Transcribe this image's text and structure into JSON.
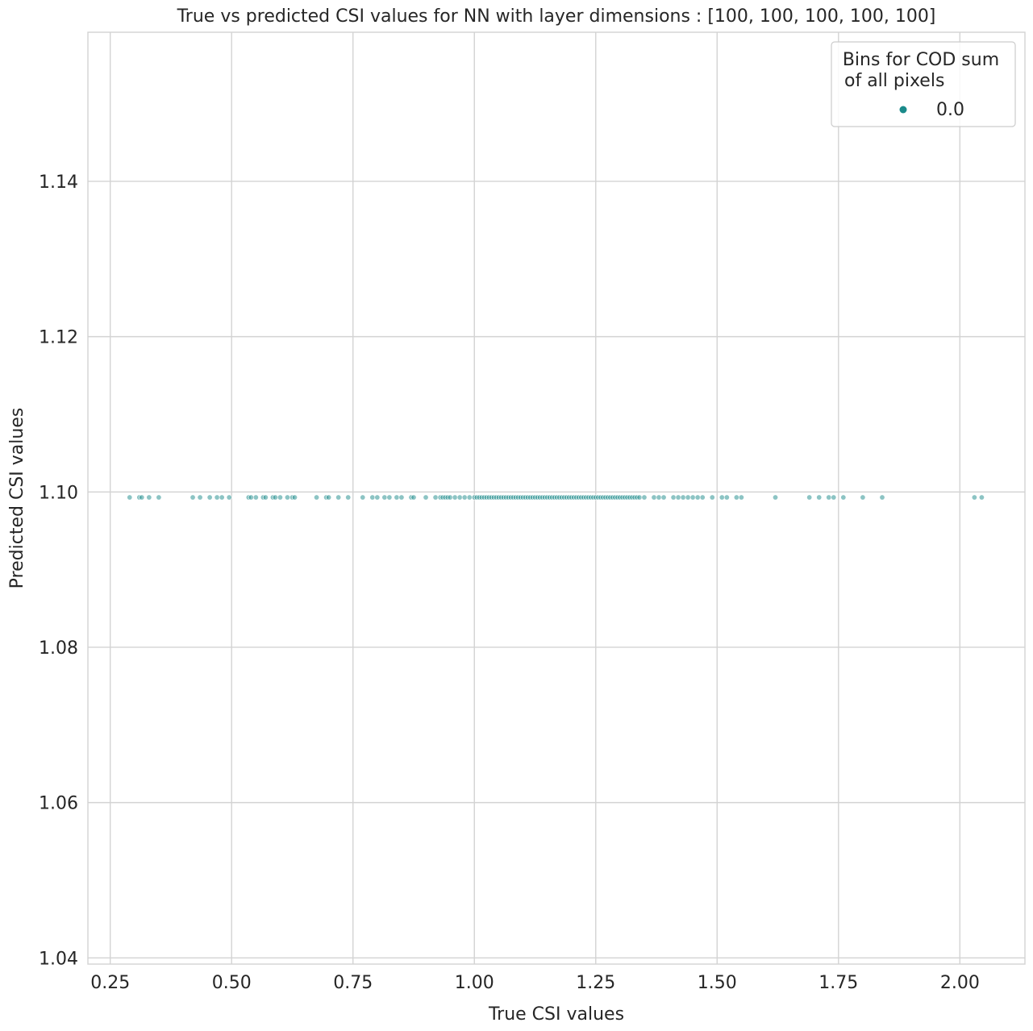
{
  "chart_data": {
    "type": "scatter",
    "title": "True vs predicted CSI values for NN with layer dimensions : [100, 100, 100, 100, 100]",
    "xlabel": "True CSI values",
    "ylabel": "Predicted CSI values",
    "xlim": [
      0.204,
      2.134
    ],
    "ylim": [
      1.0392,
      1.1592
    ],
    "xticks": [
      0.25,
      0.5,
      0.75,
      1.0,
      1.25,
      1.5,
      1.75,
      2.0
    ],
    "xtick_labels": [
      "0.25",
      "0.50",
      "0.75",
      "1.00",
      "1.25",
      "1.50",
      "1.75",
      "2.00"
    ],
    "yticks": [
      1.04,
      1.06,
      1.08,
      1.1,
      1.12,
      1.14
    ],
    "ytick_labels": [
      "1.04",
      "1.06",
      "1.08",
      "1.10",
      "1.12",
      "1.14"
    ],
    "grid": true,
    "legend": {
      "title_line1": "Bins for COD sum",
      "title_line2": " of all pixels",
      "placement": "top-right",
      "entries": [
        {
          "label": "0.0",
          "color": "#1a8a8a"
        }
      ]
    },
    "series": [
      {
        "name": "0.0",
        "color": "#1a8a8a",
        "y": 1.0993,
        "x": [
          0.29,
          0.31,
          0.315,
          0.33,
          0.35,
          0.42,
          0.435,
          0.455,
          0.47,
          0.48,
          0.495,
          0.535,
          0.54,
          0.55,
          0.565,
          0.57,
          0.585,
          0.59,
          0.6,
          0.615,
          0.625,
          0.63,
          0.675,
          0.695,
          0.7,
          0.72,
          0.74,
          0.77,
          0.79,
          0.8,
          0.815,
          0.825,
          0.84,
          0.85,
          0.87,
          0.875,
          0.9,
          0.92,
          0.93,
          0.935,
          0.94,
          0.945,
          0.95,
          0.96,
          0.97,
          0.98,
          0.99,
          1.0,
          1.005,
          1.01,
          1.015,
          1.02,
          1.025,
          1.03,
          1.035,
          1.04,
          1.045,
          1.05,
          1.055,
          1.06,
          1.065,
          1.07,
          1.075,
          1.08,
          1.085,
          1.09,
          1.095,
          1.1,
          1.105,
          1.11,
          1.115,
          1.12,
          1.125,
          1.13,
          1.135,
          1.14,
          1.145,
          1.15,
          1.155,
          1.16,
          1.165,
          1.17,
          1.175,
          1.18,
          1.185,
          1.19,
          1.195,
          1.2,
          1.205,
          1.21,
          1.215,
          1.22,
          1.225,
          1.23,
          1.235,
          1.24,
          1.245,
          1.25,
          1.255,
          1.26,
          1.265,
          1.27,
          1.275,
          1.28,
          1.285,
          1.29,
          1.295,
          1.3,
          1.305,
          1.31,
          1.315,
          1.32,
          1.325,
          1.33,
          1.335,
          1.34,
          1.35,
          1.37,
          1.38,
          1.39,
          1.41,
          1.42,
          1.43,
          1.44,
          1.45,
          1.46,
          1.47,
          1.49,
          1.51,
          1.52,
          1.54,
          1.55,
          1.62,
          1.69,
          1.71,
          1.73,
          1.74,
          1.76,
          1.8,
          1.84,
          2.03,
          2.045
        ]
      }
    ]
  }
}
